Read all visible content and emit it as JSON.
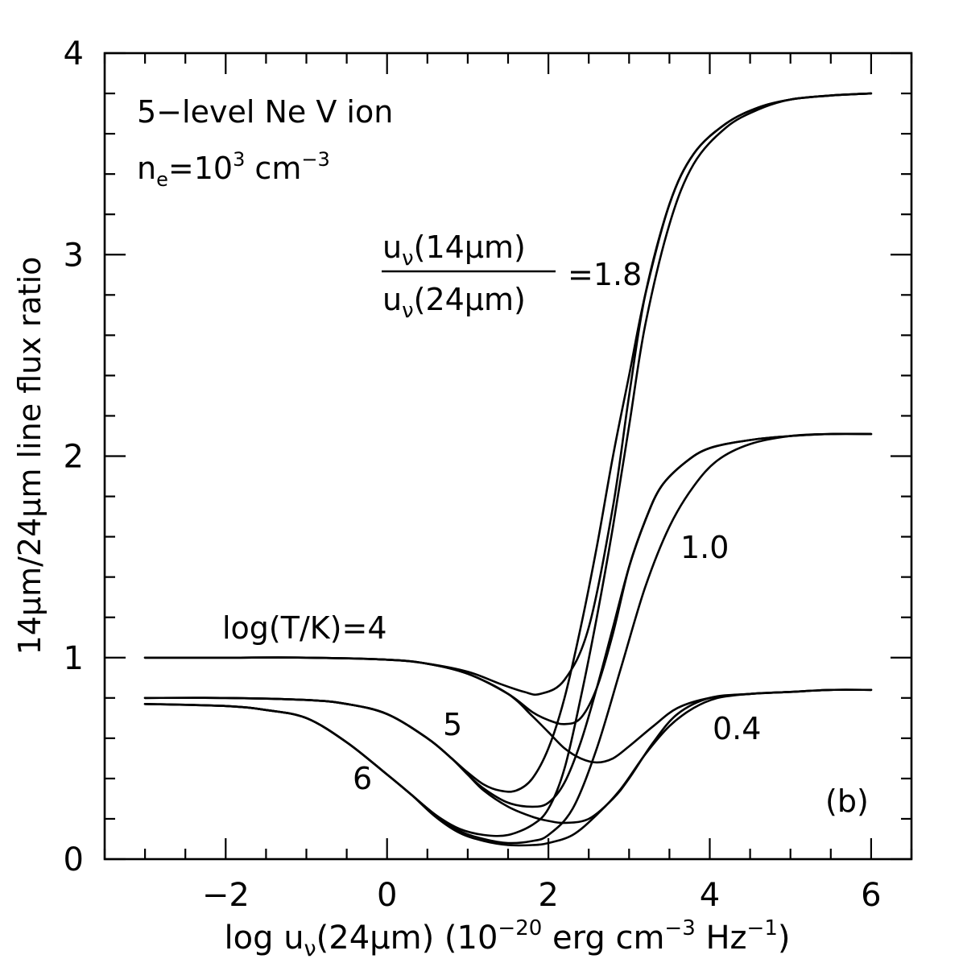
{
  "chart_data": {
    "type": "line",
    "xlabel_parts": [
      "log u",
      "ν",
      "(24",
      "μ",
      "m) (10",
      "−20",
      " erg cm",
      "−3",
      " Hz",
      "−1",
      ")"
    ],
    "ylabel": "14μm/24μm line flux ratio",
    "xlim": [
      -3.5,
      6.5
    ],
    "ylim": [
      0,
      4
    ],
    "x_ticks": [
      -2,
      0,
      2,
      4,
      6
    ],
    "x_tick_labels": [
      "−2",
      "0",
      "2",
      "4",
      "6"
    ],
    "y_ticks": [
      0,
      1,
      2,
      3,
      4
    ],
    "y_tick_labels": [
      "0",
      "1",
      "2",
      "3",
      "4"
    ],
    "grid": false,
    "panel_label": "(b)",
    "annotations": {
      "ion_label": "5−level Ne V ion",
      "density_parts": [
        "n",
        "e",
        "=10",
        "3",
        " cm",
        "−3"
      ],
      "ratio_numerator": "u",
      "ratio_num_sub": "ν",
      "ratio_num_rest": "(14",
      "ratio_num_mu": "μ",
      "ratio_num_end": "m)",
      "ratio_denominator": "u",
      "ratio_den_sub": "ν",
      "ratio_den_rest": "(24",
      "ratio_den_mu": "μ",
      "ratio_den_end": "m)",
      "ratio_value": "=1.8",
      "label_1_0": "1.0",
      "label_0_4": "0.4",
      "temp_label": "log(T/K)=4",
      "temp_5": "5",
      "temp_6": "6"
    },
    "series": [
      {
        "x": [
          -3,
          -2,
          -1,
          0,
          0.5,
          1,
          1.4,
          1.7,
          1.9,
          2.2,
          2.5,
          2.8,
          3.0,
          3.2,
          3.5,
          3.8,
          4.2,
          4.6,
          5,
          5.5,
          6
        ],
        "y": [
          1.0,
          1.0,
          1.0,
          0.99,
          0.97,
          0.93,
          0.87,
          0.83,
          0.82,
          0.89,
          1.15,
          1.75,
          2.3,
          2.8,
          3.25,
          3.5,
          3.65,
          3.73,
          3.77,
          3.79,
          3.8
        ]
      },
      {
        "x": [
          -3,
          -2,
          -1,
          0,
          0.5,
          1,
          1.5,
          1.8,
          2.0,
          2.2,
          2.4,
          2.6,
          2.8,
          3.0,
          3.2,
          3.4,
          3.7,
          4.0,
          4.5,
          5,
          5.5,
          6
        ],
        "y": [
          1.0,
          1.0,
          1.0,
          0.99,
          0.97,
          0.92,
          0.82,
          0.73,
          0.69,
          0.67,
          0.7,
          0.85,
          1.12,
          1.45,
          1.68,
          1.85,
          1.97,
          2.04,
          2.08,
          2.1,
          2.11,
          2.11
        ]
      },
      {
        "x": [
          -3,
          -2,
          -1,
          0,
          0.5,
          1,
          1.5,
          1.8,
          2.0,
          2.2,
          2.4,
          2.6,
          2.8,
          3.0,
          3.3,
          3.6,
          4.0,
          4.5,
          5,
          5.5,
          6
        ],
        "y": [
          1.0,
          1.0,
          1.0,
          0.99,
          0.97,
          0.92,
          0.82,
          0.71,
          0.63,
          0.55,
          0.5,
          0.48,
          0.5,
          0.56,
          0.66,
          0.75,
          0.8,
          0.82,
          0.83,
          0.84,
          0.84
        ]
      },
      {
        "x": [
          -3,
          -2,
          -1,
          -0.5,
          0,
          0.5,
          0.8,
          1.0,
          1.2,
          1.4,
          1.6,
          1.8,
          2.0,
          2.2,
          2.4,
          2.6,
          2.8,
          3.0,
          3.2,
          3.5,
          3.8,
          4.2,
          4.6,
          5,
          5.5,
          6
        ],
        "y": [
          0.8,
          0.8,
          0.79,
          0.77,
          0.72,
          0.6,
          0.5,
          0.43,
          0.37,
          0.34,
          0.34,
          0.4,
          0.55,
          0.8,
          1.15,
          1.55,
          2.0,
          2.4,
          2.8,
          3.25,
          3.5,
          3.65,
          3.73,
          3.77,
          3.79,
          3.8
        ]
      },
      {
        "x": [
          -3,
          -2,
          -1,
          -0.5,
          0,
          0.5,
          0.8,
          1.0,
          1.2,
          1.5,
          1.8,
          2.0,
          2.2,
          2.4,
          2.6,
          2.8,
          3.0,
          3.2,
          3.4,
          3.7,
          4.0,
          4.5,
          5,
          5.5,
          6
        ],
        "y": [
          0.8,
          0.8,
          0.79,
          0.77,
          0.72,
          0.6,
          0.5,
          0.42,
          0.35,
          0.28,
          0.26,
          0.28,
          0.38,
          0.58,
          0.85,
          1.15,
          1.45,
          1.68,
          1.85,
          1.97,
          2.04,
          2.08,
          2.1,
          2.11,
          2.11
        ]
      },
      {
        "x": [
          -3,
          -2,
          -1,
          -0.5,
          0,
          0.5,
          0.8,
          1.0,
          1.2,
          1.5,
          1.8,
          2.0,
          2.2,
          2.5,
          2.8,
          3.0,
          3.3,
          3.6,
          4.0,
          4.5,
          5,
          5.5,
          6
        ],
        "y": [
          0.8,
          0.8,
          0.79,
          0.77,
          0.72,
          0.6,
          0.5,
          0.42,
          0.34,
          0.26,
          0.21,
          0.19,
          0.18,
          0.2,
          0.3,
          0.4,
          0.58,
          0.72,
          0.8,
          0.82,
          0.83,
          0.84,
          0.84
        ]
      },
      {
        "x": [
          -3,
          -2,
          -1.5,
          -1,
          -0.5,
          0,
          0.3,
          0.6,
          0.9,
          1.2,
          1.5,
          1.8,
          2.0,
          2.2,
          2.4,
          2.6,
          2.8,
          3.0,
          3.2,
          3.5,
          3.8,
          4.2,
          4.6,
          5,
          5.5,
          6
        ],
        "y": [
          0.77,
          0.76,
          0.74,
          0.7,
          0.58,
          0.42,
          0.32,
          0.22,
          0.15,
          0.12,
          0.12,
          0.17,
          0.25,
          0.45,
          0.8,
          1.2,
          1.65,
          2.15,
          2.65,
          3.15,
          3.45,
          3.63,
          3.72,
          3.77,
          3.79,
          3.8
        ]
      },
      {
        "x": [
          -3,
          -2,
          -1.5,
          -1,
          -0.5,
          0,
          0.3,
          0.6,
          0.9,
          1.2,
          1.5,
          1.8,
          2.0,
          2.3,
          2.6,
          2.9,
          3.2,
          3.5,
          3.8,
          4.1,
          4.5,
          5,
          5.5,
          6
        ],
        "y": [
          0.77,
          0.76,
          0.74,
          0.7,
          0.58,
          0.42,
          0.32,
          0.22,
          0.14,
          0.1,
          0.08,
          0.09,
          0.12,
          0.25,
          0.55,
          0.95,
          1.35,
          1.65,
          1.85,
          1.98,
          2.06,
          2.1,
          2.11,
          2.11
        ]
      },
      {
        "x": [
          -3,
          -2,
          -1.5,
          -1,
          -0.5,
          0,
          0.3,
          0.6,
          0.9,
          1.2,
          1.5,
          1.8,
          2.0,
          2.3,
          2.6,
          2.9,
          3.2,
          3.5,
          3.8,
          4.1,
          4.5,
          5,
          5.5,
          6
        ],
        "y": [
          0.77,
          0.76,
          0.74,
          0.7,
          0.58,
          0.42,
          0.32,
          0.21,
          0.13,
          0.09,
          0.07,
          0.07,
          0.08,
          0.12,
          0.22,
          0.35,
          0.52,
          0.66,
          0.75,
          0.8,
          0.82,
          0.83,
          0.84,
          0.84
        ]
      }
    ]
  }
}
